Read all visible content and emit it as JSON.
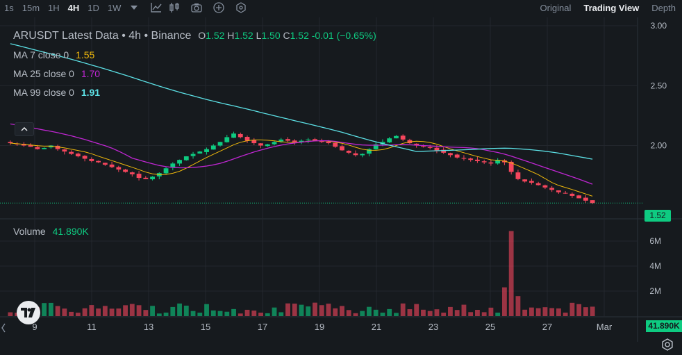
{
  "toolbar": {
    "timeframes": [
      "1s",
      "15m",
      "1H",
      "4H",
      "1D",
      "1W"
    ],
    "active_timeframe": "4H",
    "icons": [
      "chevron-down-icon",
      "line-chart-icon",
      "candle-icon",
      "camera-icon",
      "plus-circle-icon",
      "hexagon-settings-icon"
    ],
    "views": [
      "Original",
      "Trading View",
      "Depth"
    ],
    "active_view": "Trading View"
  },
  "legend": {
    "title": "ARUSDT Latest Data • 4h • Binance",
    "o_label": "O",
    "o": "1.52",
    "h_label": "H",
    "h": "1.52",
    "l_label": "L",
    "l": "1.50",
    "c_label": "C",
    "c": "1.52",
    "change": "-0.01 (−0.65%)"
  },
  "ma": [
    {
      "label": "MA 7 close 0",
      "value": "1.55",
      "color": "#f0b90b"
    },
    {
      "label": "MA 25 close 0",
      "value": "1.70",
      "color": "#c026d3"
    },
    {
      "label": "MA 99 close 0",
      "value": "1.91",
      "color": "#5ce1e6"
    }
  ],
  "volume": {
    "label": "Volume",
    "value": "41.890K"
  },
  "price_axis": [
    "3.00",
    "2.50",
    "2.00",
    "1.52"
  ],
  "volume_axis": [
    "6M",
    "4M",
    "2M"
  ],
  "time_axis": [
    "9",
    "11",
    "13",
    "15",
    "17",
    "19",
    "21",
    "23",
    "25",
    "27",
    "Mar"
  ],
  "current_price_tag": "1.52",
  "current_volume_tag": "41.890K",
  "colors": {
    "up": "#0ecb81",
    "down": "#f6465d",
    "ma7": "#f0b90b",
    "ma25": "#c026d3",
    "ma99": "#5ce1e6",
    "bg": "#161a1e",
    "grid": "#23272d"
  },
  "chart_data": {
    "type": "candlestick",
    "title": "ARUSDT Latest Data • 4h • Binance",
    "interval": "4h",
    "price_range": [
      1.4,
      3.0
    ],
    "volume_range": [
      0,
      7000000
    ],
    "close_series_approx": [
      2.02,
      2.01,
      2.0,
      1.99,
      1.97,
      1.98,
      2.0,
      1.97,
      1.95,
      1.93,
      1.91,
      1.89,
      1.87,
      1.86,
      1.84,
      1.82,
      1.8,
      1.78,
      1.76,
      1.73,
      1.72,
      1.74,
      1.77,
      1.81,
      1.85,
      1.88,
      1.91,
      1.93,
      1.95,
      1.97,
      2.0,
      2.03,
      2.07,
      2.1,
      2.07,
      2.04,
      2.02,
      2.0,
      2.01,
      2.03,
      2.05,
      2.04,
      2.03,
      2.04,
      2.05,
      2.04,
      2.03,
      2.02,
      1.99,
      1.96,
      1.94,
      1.92,
      1.93,
      1.97,
      2.01,
      2.03,
      2.06,
      2.08,
      2.05,
      2.02,
      2.0,
      1.99,
      1.98,
      1.96,
      1.94,
      1.92,
      1.9,
      1.89,
      1.88,
      1.87,
      1.86,
      1.85,
      1.88,
      1.86,
      1.78,
      1.72,
      1.7,
      1.69,
      1.67,
      1.65,
      1.63,
      1.61,
      1.6,
      1.58,
      1.56,
      1.54,
      1.52
    ],
    "ma_series": {
      "MA 7": 1.55,
      "MA 25": 1.7,
      "MA 99": 1.91
    },
    "volume_peak": 6800000
  }
}
